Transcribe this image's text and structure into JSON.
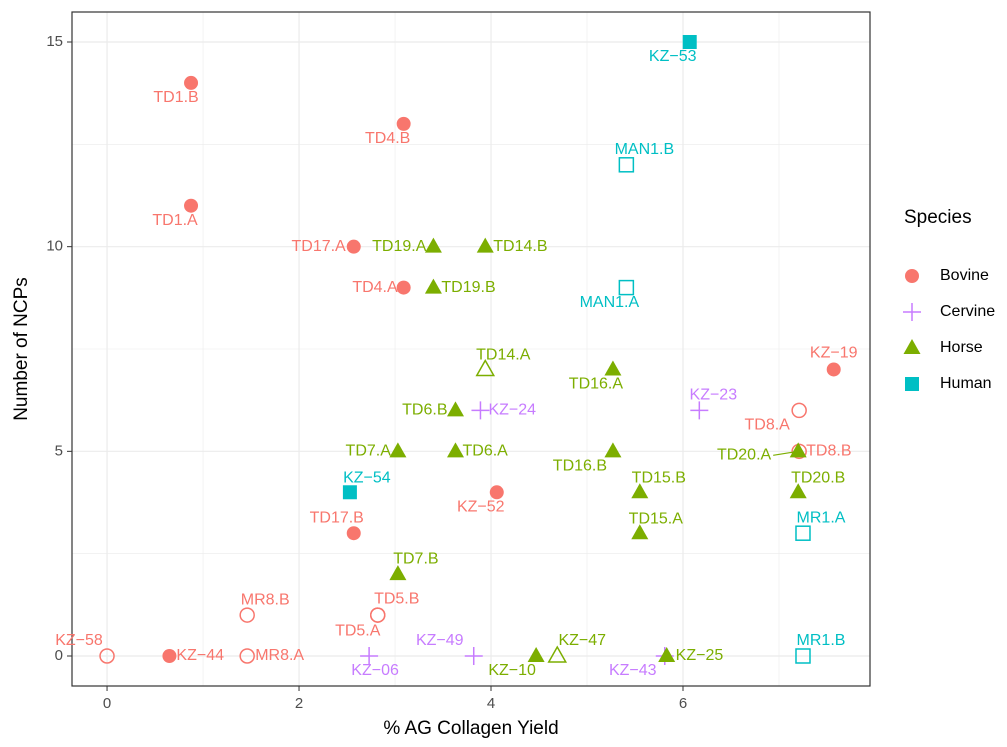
{
  "chart_data": {
    "type": "scatter",
    "x_label": "% AG Collagen Yield",
    "y_label": "Number of NCPs",
    "legend_title": "Species",
    "legend": "right",
    "grid": true,
    "xlim": [
      -0.365,
      7.948
    ],
    "ylim": [
      -0.733,
      15.733
    ],
    "xticks": [
      0,
      2,
      4,
      6
    ],
    "yticks": [
      0,
      5,
      10,
      15
    ],
    "series": [
      {
        "name": "Bovine",
        "color": "#F8766D",
        "shape": "circle",
        "x": [
          0.875,
          0.875,
          3.09,
          2.57,
          3.09,
          7.57,
          4.06,
          2.57,
          0.65,
          0,
          1.46,
          1.46,
          2.82,
          2.82,
          7.21,
          7.21
        ],
        "values": [
          14,
          11,
          13,
          10,
          9,
          7,
          4,
          3,
          0,
          0,
          1,
          0,
          1,
          1,
          6,
          5
        ],
        "labels": [
          "TD1.B",
          "TD1.A",
          "TD4.B",
          "TD17.A",
          "TD4.A",
          "KZ−19",
          "KZ−52",
          "TD17.B",
          "KZ−44",
          "KZ−58",
          "MR8.B",
          "MR8.A",
          "TD5.B",
          "TD5.A",
          "TD8.A",
          "TD8.B"
        ],
        "open": [
          false,
          false,
          false,
          false,
          false,
          false,
          false,
          false,
          false,
          true,
          true,
          true,
          true,
          true,
          true,
          true
        ]
      },
      {
        "name": "Cervine",
        "color": "#C77CFF",
        "shape": "plus",
        "x": [
          3.89,
          6.17,
          2.73,
          3.82,
          5.81
        ],
        "values": [
          6,
          6,
          0,
          0,
          0
        ],
        "labels": [
          "KZ−24",
          "KZ−23",
          "KZ−06",
          "KZ−49",
          "KZ−43"
        ],
        "open": [
          false,
          false,
          false,
          false,
          false
        ]
      },
      {
        "name": "Horse",
        "color": "#7CAE00",
        "shape": "triangle",
        "x": [
          3.4,
          3.94,
          3.4,
          3.94,
          5.27,
          3.63,
          3.03,
          3.63,
          5.27,
          5.55,
          5.55,
          7.2,
          7.2,
          3.03,
          4.47,
          4.69,
          5.83
        ],
        "values": [
          10,
          10,
          9,
          7,
          7,
          6,
          5,
          5,
          5,
          4,
          3,
          5,
          4,
          2,
          0,
          0,
          0
        ],
        "labels": [
          "TD19.A",
          "TD14.B",
          "TD19.B",
          "TD14.A",
          "TD16.A",
          "TD6.B",
          "TD7.A",
          "TD6.A",
          "TD16.B",
          "TD15.B",
          "TD15.A",
          "TD20.A",
          "TD20.B",
          "TD7.B",
          "KZ−10",
          "KZ−47",
          "KZ−25"
        ],
        "open": [
          false,
          false,
          false,
          true,
          false,
          false,
          false,
          false,
          false,
          false,
          false,
          false,
          false,
          false,
          false,
          true,
          false
        ]
      },
      {
        "name": "Human",
        "color": "#00BFC4",
        "shape": "square",
        "x": [
          6.07,
          5.41,
          5.41,
          2.53,
          7.25,
          7.25
        ],
        "values": [
          15,
          12,
          9,
          4,
          3,
          0
        ],
        "labels": [
          "KZ−53",
          "MAN1.B",
          "MAN1.A",
          "KZ−54",
          "MR1.A",
          "MR1.B"
        ],
        "open": [
          false,
          true,
          true,
          false,
          true,
          true
        ]
      }
    ]
  }
}
